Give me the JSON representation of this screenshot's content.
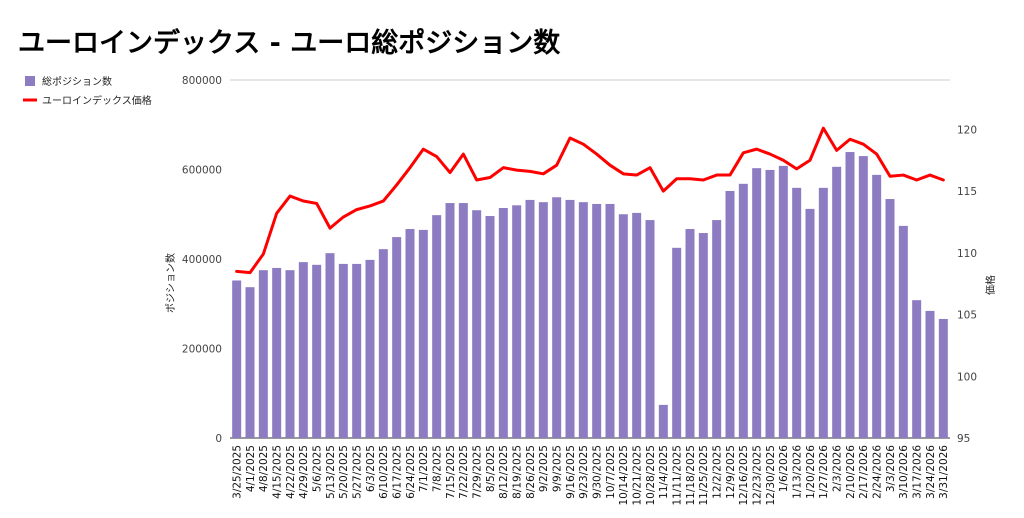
{
  "chart_data": {
    "type": "bar",
    "title": "ユーロインデックス - ユーロ総ポジション数",
    "categories": [
      "3/25/2025",
      "4/1/2025",
      "4/8/2025",
      "4/15/2025",
      "4/22/2025",
      "4/29/2025",
      "5/6/2025",
      "5/13/2025",
      "5/20/2025",
      "5/27/2025",
      "6/3/2025",
      "6/10/2025",
      "6/17/2025",
      "6/24/2025",
      "7/1/2025",
      "7/8/2025",
      "7/15/2025",
      "7/22/2025",
      "7/29/2025",
      "8/5/2025",
      "8/12/2025",
      "8/19/2025",
      "8/26/2025",
      "9/2/2025",
      "9/9/2025",
      "9/16/2025",
      "9/23/2025",
      "9/30/2025",
      "10/7/2025",
      "10/14/2025",
      "10/21/2025",
      "10/28/2025",
      "11/4/2025",
      "11/11/2025",
      "11/18/2025",
      "11/25/2025",
      "12/2/2025",
      "12/9/2025",
      "12/16/2025",
      "12/23/2025",
      "12/30/2025",
      "1/6/2026",
      "1/13/2026",
      "1/20/2026",
      "1/27/2026",
      "2/3/2026",
      "2/10/2026",
      "2/17/2026",
      "2/24/2026",
      "3/3/2026",
      "3/10/2026",
      "3/17/2026",
      "3/24/2026",
      "3/31/2026"
    ],
    "series": [
      {
        "name": "総ポジション数",
        "type": "bar",
        "axis": "left",
        "color": "#8e7cc3",
        "values": [
          352000,
          337000,
          375000,
          380000,
          375000,
          393000,
          387000,
          413000,
          389000,
          389000,
          398000,
          422000,
          449000,
          467000,
          465000,
          498000,
          525000,
          525000,
          509000,
          496000,
          514000,
          520000,
          532000,
          527000,
          538000,
          532000,
          527000,
          523000,
          523000,
          500000,
          503000,
          487000,
          74000,
          425000,
          467000,
          458000,
          487000,
          552000,
          568000,
          603000,
          599000,
          608000,
          559000,
          512000,
          559000,
          606000,
          639000,
          630000,
          588000,
          534000,
          474000,
          308000,
          284000,
          266000
        ]
      },
      {
        "name": "ユーロインデックス価格",
        "type": "line",
        "axis": "right",
        "color": "#ff0000",
        "values": [
          108.5,
          108.4,
          109.9,
          113.2,
          114.6,
          114.2,
          114.0,
          112.0,
          112.9,
          113.5,
          113.8,
          114.2,
          115.5,
          116.9,
          118.4,
          117.8,
          116.5,
          118.0,
          115.9,
          116.1,
          116.9,
          116.7,
          116.6,
          116.4,
          117.1,
          119.3,
          118.8,
          118.0,
          117.1,
          116.4,
          116.3,
          116.9,
          115.0,
          116.0,
          116.0,
          115.9,
          116.3,
          116.3,
          118.1,
          118.4,
          118.0,
          117.5,
          116.8,
          117.5,
          120.1,
          118.3,
          119.2,
          118.8,
          118.0,
          116.2,
          116.3,
          115.9,
          116.3,
          115.9
        ]
      }
    ],
    "ylabel": "ポジション数",
    "y2label": "価格",
    "ylim": [
      0,
      800000
    ],
    "y2lim": [
      95,
      124
    ],
    "yticks": [
      0,
      200000,
      400000,
      600000,
      800000
    ],
    "y2ticks": [
      95,
      100,
      105,
      110,
      115,
      120
    ],
    "legend_position": "top-left",
    "grid": false
  }
}
